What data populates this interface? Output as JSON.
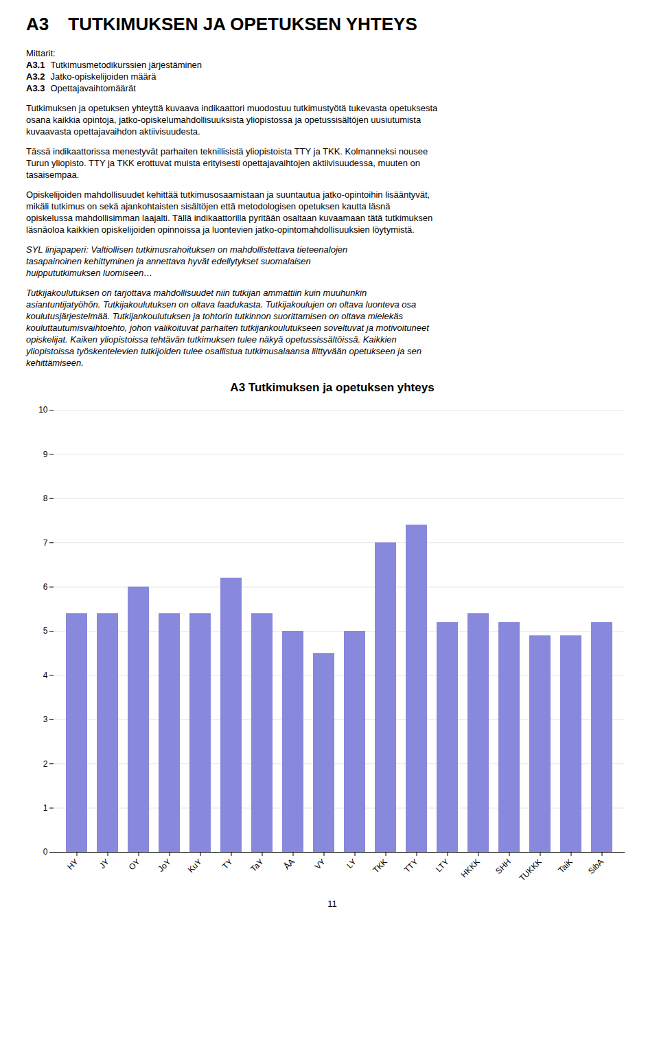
{
  "page_title": [
    "A3",
    "TUTKIMUKSEN JA OPETUKSEN YHTEYS"
  ],
  "text_blocks": [
    {
      "type": "header",
      "lines": [
        {
          "text": "Mittarit:"
        },
        {
          "bold": "A3.1",
          "text": "Tutkimusmetodikurssien järjestäminen"
        },
        {
          "bold": "A3.2",
          "text": "Jatko-opiskelijoiden määrä"
        },
        {
          "bold": "A3.3",
          "text": "Opettajavaihtomäärät"
        }
      ]
    },
    {
      "type": "normal",
      "lines": [
        {
          "text": "Tutkimuksen ja opetuksen yhteyttä kuvaava indikaattori muodostuu tutkimustyötä tukevasta opetuksesta"
        },
        {
          "text": "osana kaikkia opintoja, jatko-opiskelumahdollisuuksista yliopistossa ja opetussisältöjen uusiutumista"
        },
        {
          "text": "kuvaavasta opettajavaihdon aktiivisuudesta."
        }
      ]
    },
    {
      "type": "normal",
      "lines": [
        {
          "text": "Tässä indikaattorissa menestyvät parhaiten teknillisistä yliopistoista TTY ja TKK. Kolmanneksi nousee"
        },
        {
          "text": "Turun yliopisto. TTY ja TKK erottuvat muista erityisesti opettajavaihtojen aktiivisuudessa, muuten on"
        },
        {
          "text": "tasaisempaa."
        }
      ]
    },
    {
      "type": "normal",
      "lines": [
        {
          "text": "Opiskelijoiden mahdollisuudet kehittää tutkimusosaamistaan ja suuntautua jatko-opintoihin lisääntyvät,"
        },
        {
          "text": "mikäli tutkimus on sekä ajankohtaisten sisältöjen että metodologisen opetuksen kautta läsnä"
        },
        {
          "text": "opiskelussa mahdollisimman laajalti. Tällä indikaattorilla pyritään osaltaan kuvaamaan tätä tutkimuksen"
        },
        {
          "text": "läsnäoloa kaikkien opiskelijoiden opinnoissa ja luontevien jatko-opintomahdollisuuksien löytymistä."
        }
      ]
    },
    {
      "type": "italic",
      "lines": [
        {
          "text": "SYL linjapaperi: Valtiollisen tutkimusrahoituksen on mahdollistettava tieteenalojen"
        },
        {
          "text": "tasapainoinen kehittyminen ja annettava hyvät edellytykset suomalaisen"
        },
        {
          "text": "huippututkimuksen luomiseen…"
        }
      ]
    },
    {
      "type": "italic",
      "lines": [
        {
          "text": "Tutkijakoulutuksen on tarjottava mahdollisuudet niin tutkijan ammattiin kuin muuhunkin"
        },
        {
          "text": "asiantuntijatyöhön. Tutkijakoulutuksen on oltava laadukasta. Tutkijakoulujen on oltava luonteva osa"
        },
        {
          "text": "koulutusjärjestelmää. Tutkijankoulutuksen ja tohtorin tutkinnon suorittamisen on oltava mielekäs"
        },
        {
          "text": "kouluttautumisvaihtoehto, johon valikoituvat parhaiten tutkijankoulutukseen soveltuvat ja motivoituneet"
        },
        {
          "text": "opiskelijat. Kaiken yliopistoissa tehtävän tutkimuksen tulee näkyä opetussissältöissä. Kaikkien"
        },
        {
          "text": "yliopistoissa työskentelevien tutkijoiden tulee osallistua tutkimusalaansa liittyvään opetukseen ja sen"
        },
        {
          "text": "kehittämiseen."
        }
      ]
    }
  ],
  "page_number": "11",
  "chart_data": {
    "type": "bar",
    "title": "A3 Tutkimuksen ja opetuksen yhteys",
    "categories": [
      "HY",
      "JY",
      "OY",
      "JoY",
      "KuY",
      "TY",
      "TaY",
      "ÅA",
      "VY",
      "LY",
      "TKK",
      "TTY",
      "LTY",
      "HKKK",
      "SHH",
      "TUKKK",
      "TaiK",
      "SibA"
    ],
    "values": [
      5.4,
      5.4,
      6.0,
      5.4,
      5.4,
      6.2,
      5.4,
      5.0,
      4.5,
      5.0,
      7.0,
      7.4,
      5.2,
      5.4,
      5.2,
      4.9,
      4.9,
      5.2
    ],
    "color": "#8888dd",
    "ylim": [
      0,
      10
    ],
    "yticks": [
      0,
      1,
      2,
      3,
      4,
      5,
      6,
      7,
      8,
      9,
      10
    ],
    "grid": true
  }
}
